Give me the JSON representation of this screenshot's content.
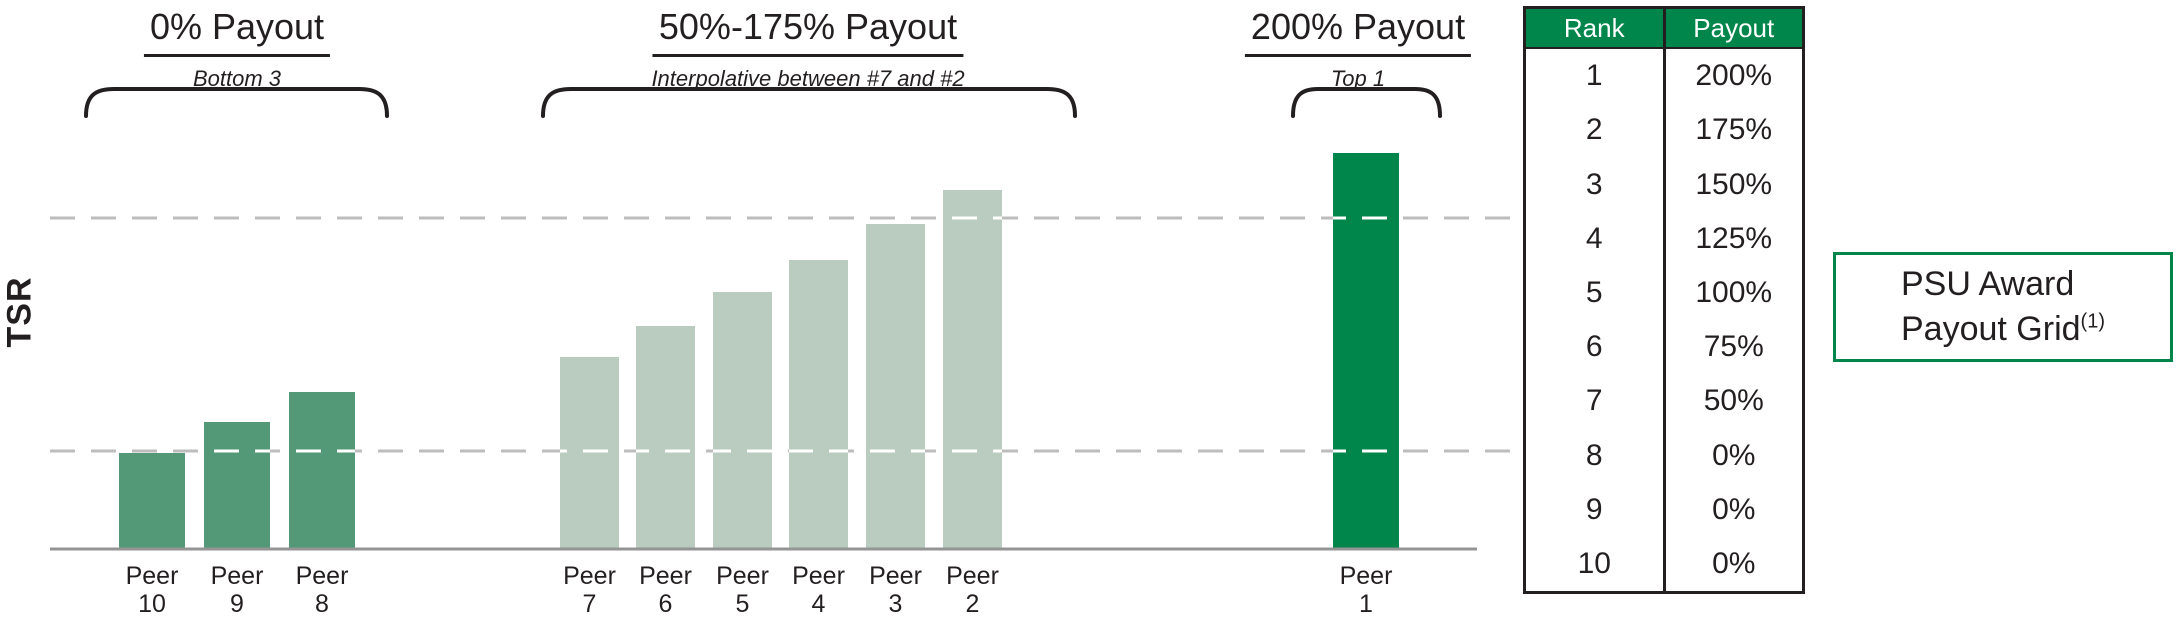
{
  "colors": {
    "dark_green": "#00854A",
    "medium_green": "#539877",
    "light_green": "#B9CCBF",
    "axis_gray": "#949494",
    "grid_gray": "#BDBDBD",
    "white_dash": "#FFFFFF",
    "ink": "#231F20",
    "table_header_bg": "#00854A",
    "table_header_text": "#FFFFFF"
  },
  "sections": [
    {
      "title": "0% Payout",
      "subtitle": "Bottom 3"
    },
    {
      "title": "50%-175% Payout",
      "subtitle": "Interpolative between #7 and #2"
    },
    {
      "title": "200% Payout",
      "subtitle": "Top 1"
    }
  ],
  "chart_data": {
    "type": "bar",
    "title": "",
    "xlabel": "",
    "ylabel": "TSR",
    "categories": [
      "Peer 10",
      "Peer 9",
      "Peer 8",
      "Peer 7",
      "Peer 6",
      "Peer 5",
      "Peer 4",
      "Peer 3",
      "Peer 2",
      "Peer 1"
    ],
    "series": [
      {
        "name": "TSR (relative height, unlabeled axis)",
        "values": [
          96,
          127,
          157,
          192,
          223,
          257,
          289,
          325,
          359,
          396
        ]
      }
    ],
    "groups": [
      {
        "name": "0% Payout (Bottom 3)",
        "members": [
          "Peer 10",
          "Peer 9",
          "Peer 8"
        ],
        "color_key": "medium_green"
      },
      {
        "name": "50%-175% Payout (Interpolative between #7 and #2)",
        "members": [
          "Peer 7",
          "Peer 6",
          "Peer 5",
          "Peer 4",
          "Peer 3",
          "Peer 2"
        ],
        "color_key": "light_green"
      },
      {
        "name": "200% Payout (Top 1)",
        "members": [
          "Peer 1"
        ],
        "color_key": "dark_green"
      }
    ],
    "gridlines_y": [
      98,
      331
    ],
    "grid": "two horizontal dashed gridlines, no numeric y-axis ticks",
    "legend": "none",
    "ylim": [
      0,
      430
    ]
  },
  "payout_table": {
    "headers": [
      "Rank",
      "Payout"
    ],
    "rows": [
      [
        "1",
        "200%"
      ],
      [
        "2",
        "175%"
      ],
      [
        "3",
        "150%"
      ],
      [
        "4",
        "125%"
      ],
      [
        "5",
        "100%"
      ],
      [
        "6",
        "75%"
      ],
      [
        "7",
        "50%"
      ],
      [
        "8",
        "0%"
      ],
      [
        "9",
        "0%"
      ],
      [
        "10",
        "0%"
      ]
    ]
  },
  "callout": {
    "line1": "PSU Award",
    "line2": "Payout Grid",
    "superscript": "(1)"
  }
}
